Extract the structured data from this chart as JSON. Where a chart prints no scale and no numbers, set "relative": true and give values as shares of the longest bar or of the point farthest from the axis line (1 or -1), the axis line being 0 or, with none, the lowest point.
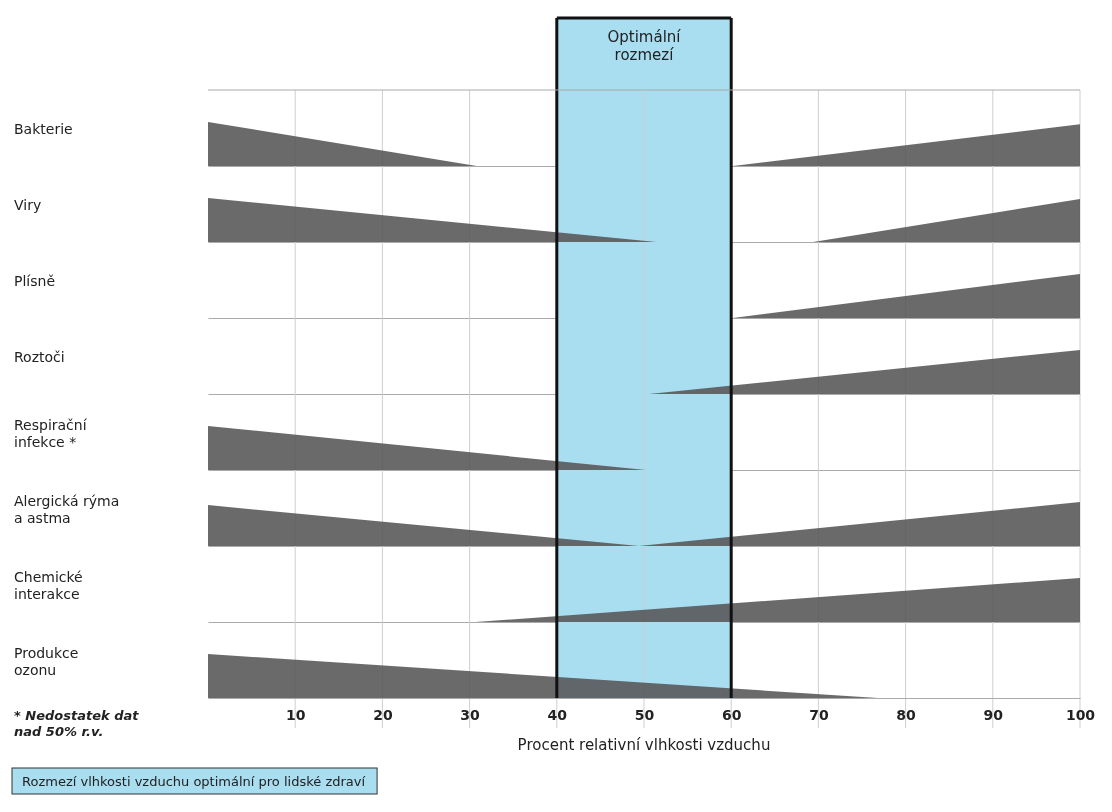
{
  "chart_data": [
    {
      "type": "area",
      "ylabel": "Bakterie",
      "relative": true,
      "x": [
        0,
        30.8,
        60.2,
        100
      ],
      "series": [
        {
          "color": "#555555",
          "values": [
            1,
            0,
            0,
            0.95
          ]
        }
      ],
      "xlim": [
        0,
        100
      ],
      "tick_labels": false,
      "grid": "x",
      "xticks": [
        10,
        20,
        30,
        40,
        50,
        60,
        70,
        80,
        90,
        100
      ],
      "bands": [
        {
          "axis": "x",
          "from": 40,
          "to": 60,
          "label": "Optimální\nrozmezí",
          "color": "#a9ddf0"
        }
      ]
    },
    {
      "type": "area",
      "ylabel": "Viry",
      "relative": true,
      "x": [
        0,
        51.4,
        69.4,
        100
      ],
      "series": [
        {
          "color": "#555555",
          "values": [
            1,
            0,
            0,
            0.98
          ]
        }
      ],
      "xlim": [
        0,
        100
      ],
      "tick_labels": false,
      "grid": "x",
      "xticks": [
        10,
        20,
        30,
        40,
        50,
        60,
        70,
        80,
        90,
        100
      ],
      "bands": [
        {
          "axis": "x",
          "from": 40,
          "to": 60,
          "label": null,
          "color": "#a9ddf0"
        }
      ]
    },
    {
      "type": "area",
      "ylabel": "Plísně",
      "relative": true,
      "x": [
        0,
        60.2,
        100
      ],
      "series": [
        {
          "color": "#555555",
          "values": [
            0,
            0,
            1
          ]
        }
      ],
      "xlim": [
        0,
        100
      ],
      "tick_labels": false,
      "grid": "x",
      "xticks": [
        10,
        20,
        30,
        40,
        50,
        60,
        70,
        80,
        90,
        100
      ],
      "bands": [
        {
          "axis": "x",
          "from": 40,
          "to": 60,
          "label": null,
          "color": "#a9ddf0"
        }
      ]
    },
    {
      "type": "area",
      "ylabel": "Roztoči",
      "relative": true,
      "x": [
        0,
        50.6,
        100
      ],
      "series": [
        {
          "color": "#555555",
          "values": [
            0,
            0,
            1
          ]
        }
      ],
      "xlim": [
        0,
        100
      ],
      "tick_labels": false,
      "grid": "x",
      "xticks": [
        10,
        20,
        30,
        40,
        50,
        60,
        70,
        80,
        90,
        100
      ],
      "bands": [
        {
          "axis": "x",
          "from": 40,
          "to": 60,
          "label": null,
          "color": "#a9ddf0"
        }
      ]
    },
    {
      "type": "area",
      "ylabel": "Respirační\ninfekce *",
      "relative": true,
      "x": [
        0,
        50.2,
        100
      ],
      "series": [
        {
          "color": "#555555",
          "values": [
            1,
            0,
            0
          ]
        }
      ],
      "xlim": [
        0,
        100
      ],
      "tick_labels": false,
      "grid": "x",
      "xticks": [
        10,
        20,
        30,
        40,
        50,
        60,
        70,
        80,
        90,
        100
      ],
      "bands": [
        {
          "axis": "x",
          "from": 40,
          "to": 60,
          "label": null,
          "color": "#a9ddf0"
        }
      ]
    },
    {
      "type": "area",
      "ylabel": "Alergická rýma\na astma",
      "relative": true,
      "x": [
        0,
        49.4,
        100
      ],
      "series": [
        {
          "color": "#555555",
          "values": [
            0.93,
            0,
            1
          ]
        }
      ],
      "xlim": [
        0,
        100
      ],
      "tick_labels": false,
      "grid": "x",
      "xticks": [
        10,
        20,
        30,
        40,
        50,
        60,
        70,
        80,
        90,
        100
      ],
      "bands": [
        {
          "axis": "x",
          "from": 40,
          "to": 60,
          "label": null,
          "color": "#a9ddf0"
        }
      ]
    },
    {
      "type": "area",
      "ylabel": "Chemické\ninterakce",
      "relative": true,
      "x": [
        0,
        30.7,
        100
      ],
      "series": [
        {
          "color": "#555555",
          "values": [
            0,
            0,
            1
          ]
        }
      ],
      "xlim": [
        0,
        100
      ],
      "tick_labels": false,
      "grid": "x",
      "xticks": [
        10,
        20,
        30,
        40,
        50,
        60,
        70,
        80,
        90,
        100
      ],
      "bands": [
        {
          "axis": "x",
          "from": 40,
          "to": 60,
          "label": null,
          "color": "#a9ddf0"
        }
      ]
    },
    {
      "type": "area",
      "ylabel": "Produkce\nozonu",
      "relative": true,
      "x": [
        0,
        76.8,
        100
      ],
      "series": [
        {
          "color": "#555555",
          "values": [
            1,
            0,
            0
          ]
        }
      ],
      "xlim": [
        0,
        100
      ],
      "tick_labels": "x",
      "grid": "x",
      "xticks": [
        10,
        20,
        30,
        40,
        50,
        60,
        70,
        80,
        90,
        100
      ],
      "xlabel": "Procent relativní vlhkosti vzduchu",
      "bands": [
        {
          "axis": "x",
          "from": 40,
          "to": 60,
          "label": null,
          "color": "#a9ddf0"
        }
      ],
      "annotations": [
        "* Nedostatek dat\nnad 50% r.v.",
        "Rozmezí vlhkosti vzduchu optimální pro lidské zdraví"
      ]
    }
  ]
}
